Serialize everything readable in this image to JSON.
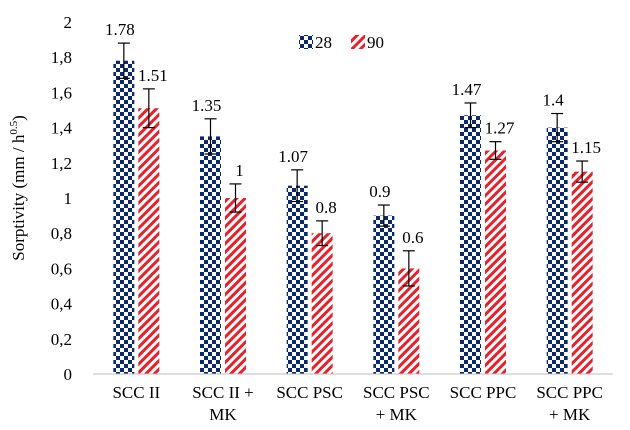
{
  "chart_data": {
    "type": "bar",
    "categories": [
      [
        "SCC II"
      ],
      [
        "SCC II +",
        "MK"
      ],
      [
        "SCC PSC"
      ],
      [
        "SCC PSC",
        "+ MK"
      ],
      [
        "SCC PPC"
      ],
      [
        "SCC PPC",
        "+ MK"
      ]
    ],
    "series": [
      {
        "name": "28",
        "values": [
          1.78,
          1.35,
          1.07,
          0.9,
          1.47,
          1.4
        ],
        "value_labels": [
          "1.78",
          "1.35",
          "1.07",
          "0.9",
          "1.47",
          "1.4"
        ],
        "errors": [
          0.1,
          0.1,
          0.09,
          0.06,
          0.07,
          0.08
        ],
        "color": "#0a2a6b",
        "pattern": "checkerboard"
      },
      {
        "name": "90",
        "values": [
          1.51,
          1,
          0.8,
          0.6,
          1.27,
          1.15
        ],
        "value_labels": [
          "1.51",
          "1",
          "0.8",
          "0.6",
          "1.27",
          "1.15"
        ],
        "errors": [
          0.11,
          0.08,
          0.07,
          0.1,
          0.05,
          0.06
        ],
        "color": "#e8202a",
        "pattern": "diagonal-stripes"
      }
    ],
    "ylim": [
      0,
      2
    ],
    "yticks": [
      "0",
      "0,2",
      "0,4",
      "0,6",
      "0,8",
      "1",
      "1,2",
      "1,4",
      "1,6",
      "1,8",
      "2"
    ],
    "ylabel": "Sorptivity (mm / h",
    "ylabel_sup": "0.5",
    "ylabel_end": ")",
    "xlabel": "",
    "grid": false,
    "legend_position": "top-center"
  }
}
